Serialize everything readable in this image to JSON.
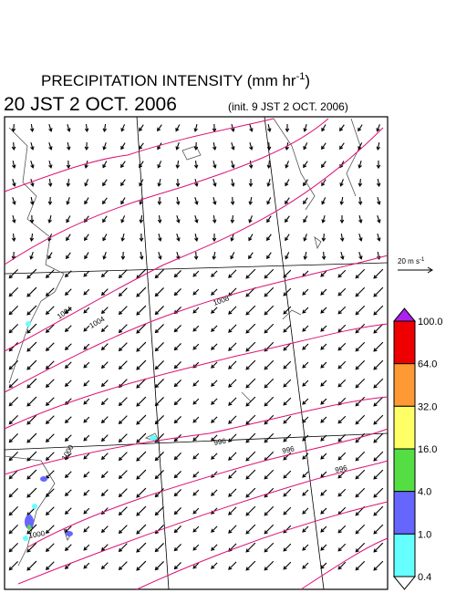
{
  "header": {
    "title": "PRECIPITATION INTENSITY (mm hr",
    "title_superscript": "-1",
    "title_close": ")",
    "valid_time": "20 JST 2 OCT. 2006",
    "init_time": "(init. 9 JST 2 OCT. 2006)"
  },
  "reference_vector": {
    "label": "20 m s",
    "superscript": "-1"
  },
  "colorbar": {
    "labels": [
      "100.0",
      "64.0",
      "32.0",
      "16.0",
      "4.0",
      "1.0",
      "0.4"
    ],
    "colors": [
      "#aa22ee",
      "#ee0000",
      "#ff9933",
      "#ffff66",
      "#55dd44",
      "#6666ff",
      "#66ffff",
      "#ffffff"
    ]
  },
  "contour_labels": [
    "1004",
    "1004",
    "1008",
    "996",
    "996",
    "996",
    "1000",
    "1000"
  ]
}
